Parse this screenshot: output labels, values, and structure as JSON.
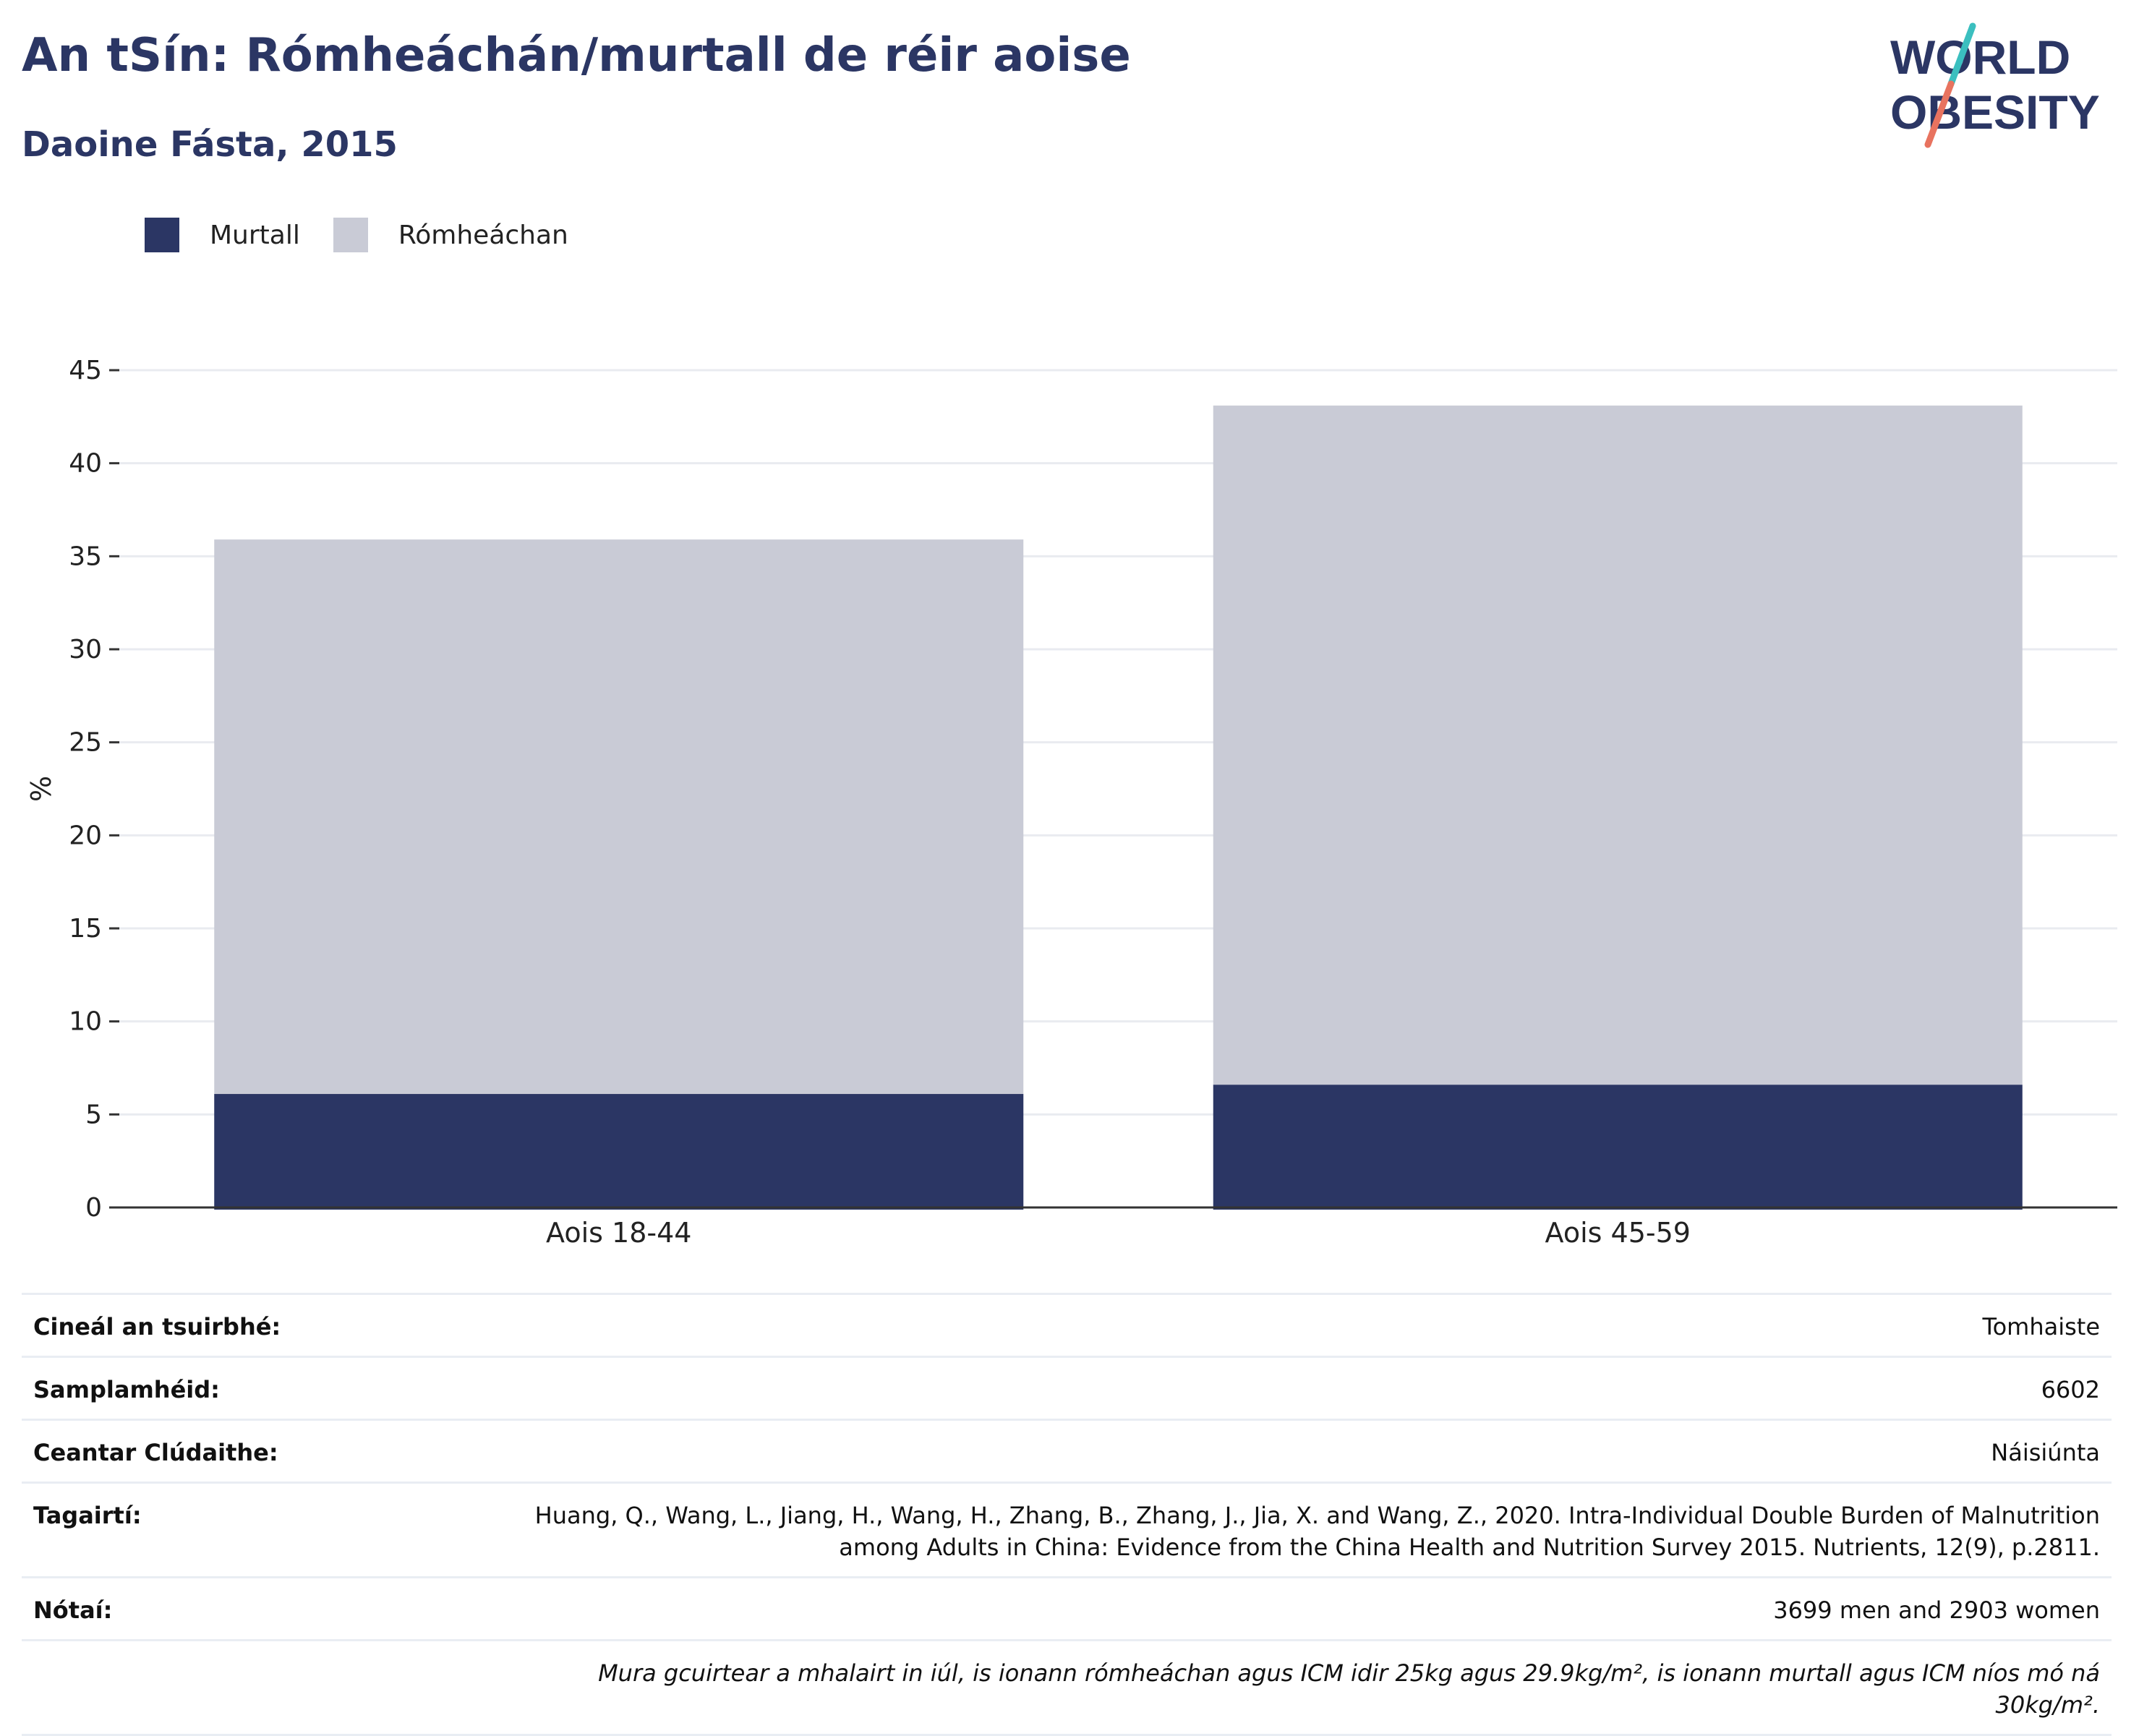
{
  "header": {
    "title": "An tSín: Rómheáchán/murtall de réir aoise",
    "subtitle": "Daoine Fásta, 2015"
  },
  "logo": {
    "line1": "WORLD",
    "line2": "OBESITY"
  },
  "legend": [
    {
      "label": "Murtall",
      "color": "#2b3664"
    },
    {
      "label": "Rómheáchan",
      "color": "#c9cbd6"
    }
  ],
  "chart_data": {
    "type": "bar",
    "stacked": true,
    "categories": [
      "Aois 18-44",
      "Aois 45-59"
    ],
    "series": [
      {
        "name": "Murtall",
        "values": [
          6.1,
          6.6
        ],
        "color": "#2b3664"
      },
      {
        "name": "Rómheáchan",
        "values": [
          29.8,
          36.5
        ],
        "color": "#c9cbd6"
      }
    ],
    "ylabel": "%",
    "ylim": [
      0,
      45
    ],
    "yticks": [
      0,
      5,
      10,
      15,
      20,
      25,
      30,
      35,
      40,
      45
    ],
    "grid": true,
    "legend_position": "top-left"
  },
  "info": {
    "rows": [
      {
        "label": "Cineál an tsuirbhé:",
        "value": "Tomhaiste"
      },
      {
        "label": "Samplamhéid:",
        "value": "6602"
      },
      {
        "label": "Ceantar Clúdaithe:",
        "value": "Náisiúnta"
      },
      {
        "label": "Tagairtí:",
        "value": "Huang, Q., Wang, L., Jiang, H., Wang, H., Zhang, B., Zhang, J., Jia, X. and Wang, Z., 2020. Intra-Individual Double Burden of Malnutrition among Adults in China: Evidence from the China Health and Nutrition Survey 2015. Nutrients, 12(9), p.2811."
      },
      {
        "label": "Nótaí:",
        "value": "3699 men and 2903 women"
      }
    ],
    "note": "Mura gcuirtear a mhalairt in iúl, is ionann rómheáchan agus ICM idir 25kg agus 29.9kg/m², is ionann murtall agus ICM níos mó ná 30kg/m²."
  }
}
